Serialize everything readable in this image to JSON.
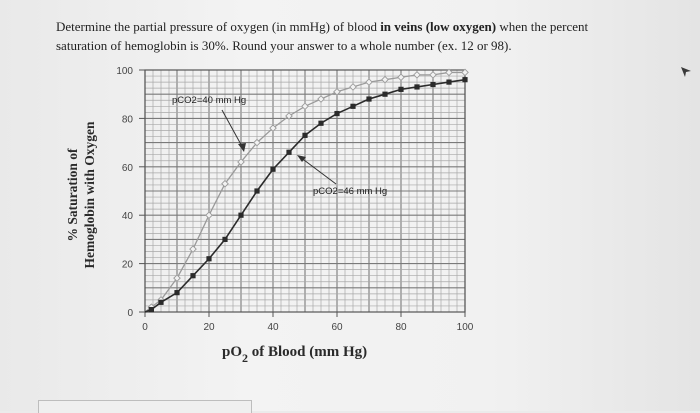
{
  "question": {
    "line1_pre": "Determine the partial pressure of oxygen (in mmHg) of blood ",
    "line1_bold": "in veins (low oxygen)",
    "line1_post": " when the percent",
    "line2": "saturation of hemoglobin is 30%. Round your answer to a whole number (ex. 12 or 98)."
  },
  "chart_data": {
    "type": "line",
    "ylabel_line1": "% Saturation of",
    "ylabel_line2": "Hemoglobin with Oxygen",
    "xlabel_main": "pO",
    "xlabel_sub": "2",
    "xlabel_rest": " of Blood (mm Hg)",
    "xlim": [
      0,
      100
    ],
    "ylim": [
      0,
      100
    ],
    "x_ticks": [
      "0",
      "20",
      "40",
      "60",
      "80",
      "100"
    ],
    "y_ticks": [
      "0",
      "20",
      "40",
      "60",
      "80",
      "100"
    ],
    "grid": true,
    "series": [
      {
        "name": "pCO2=40 mm Hg",
        "marker": "open-diamond",
        "color": "#9a9a9a",
        "x": [
          2,
          5,
          10,
          15,
          20,
          25,
          30,
          35,
          40,
          45,
          50,
          55,
          60,
          65,
          70,
          75,
          80,
          85,
          90,
          95,
          100
        ],
        "y": [
          2,
          5,
          14,
          26,
          40,
          53,
          62,
          70,
          76,
          81,
          85,
          88,
          91,
          93,
          95,
          96,
          97,
          98,
          98,
          99,
          99
        ]
      },
      {
        "name": "pCO2=46 mm Hg",
        "marker": "filled-square",
        "color": "#2b2b2b",
        "x": [
          2,
          5,
          10,
          15,
          20,
          25,
          30,
          35,
          40,
          45,
          50,
          55,
          60,
          65,
          70,
          75,
          80,
          85,
          90,
          95,
          100
        ],
        "y": [
          1,
          4,
          8,
          15,
          22,
          30,
          40,
          50,
          59,
          66,
          73,
          78,
          82,
          85,
          88,
          90,
          92,
          93,
          94,
          95,
          96
        ]
      }
    ],
    "annotations": [
      {
        "text": "pCO2=40 mm Hg"
      },
      {
        "text": "pCO2=46 mm Hg"
      }
    ]
  }
}
